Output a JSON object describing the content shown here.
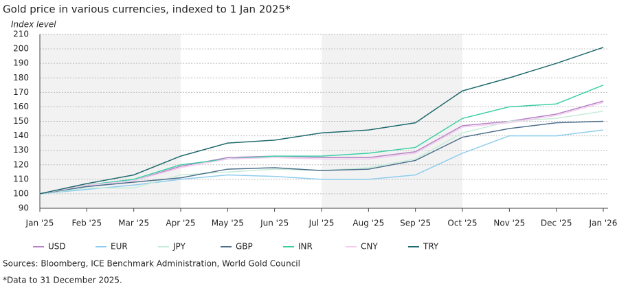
{
  "chart_data": {
    "type": "line",
    "title": "Gold price in various currencies, indexed to 1 Jan 2025*",
    "y_label": "Index level",
    "source": "Sources: Bloomberg, ICE Benchmark Administration, World Gold Council",
    "note": "*Data to 31 December 2025.",
    "categories": [
      "Jan '25",
      "Feb '25",
      "Mar '25",
      "Apr '25",
      "May '25",
      "Jun '25",
      "Jul '25",
      "Aug '25",
      "Sep '25",
      "Oct '25",
      "Nov '25",
      "Dec '25",
      "Jan '26"
    ],
    "series": [
      {
        "name": "USD",
        "color": "#b784c6",
        "values": [
          100,
          106,
          109,
          119,
          125,
          126,
          125,
          125,
          129,
          147,
          150,
          155,
          164
        ]
      },
      {
        "name": "EUR",
        "color": "#8ecdee",
        "values": [
          100,
          103,
          106,
          110,
          113,
          112,
          110,
          110,
          113,
          128,
          140,
          140,
          144
        ]
      },
      {
        "name": "JPY",
        "color": "#c6ecd9",
        "values": [
          100,
          104,
          104,
          113,
          115,
          117,
          116,
          118,
          124,
          142,
          150,
          152,
          157
        ]
      },
      {
        "name": "GBP",
        "color": "#4d6f8c",
        "values": [
          100,
          105,
          108,
          111,
          117,
          118,
          116,
          117,
          123,
          139,
          145,
          149,
          150
        ]
      },
      {
        "name": "INR",
        "color": "#3ccfa6",
        "values": [
          100,
          106,
          110,
          120,
          124,
          126,
          126,
          128,
          132,
          152,
          160,
          162,
          175
        ]
      },
      {
        "name": "CNY",
        "color": "#f2cdee",
        "values": [
          100,
          106,
          109,
          118,
          124,
          125,
          124,
          124,
          128,
          146,
          149,
          154,
          163
        ]
      },
      {
        "name": "TRY",
        "color": "#1f6a6e",
        "values": [
          100,
          107,
          113,
          126,
          135,
          137,
          142,
          144,
          149,
          171,
          180,
          190,
          201
        ]
      }
    ],
    "ylim": [
      90,
      210
    ],
    "yticks": [
      90,
      100,
      110,
      120,
      130,
      140,
      150,
      160,
      170,
      180,
      190,
      200,
      210
    ],
    "grid": true
  }
}
